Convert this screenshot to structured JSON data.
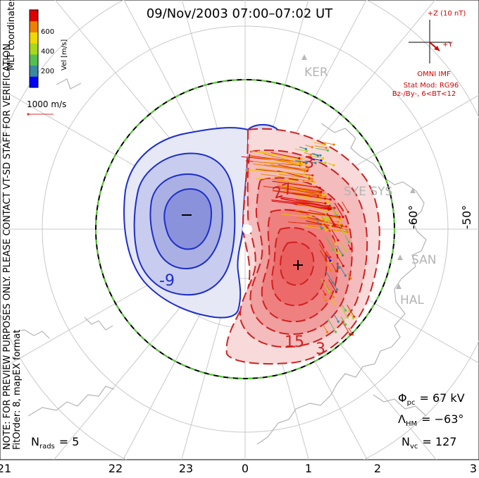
{
  "title": "09/Nov/2003 07:00–07:02 UT",
  "side_text": {
    "mlt_coordinates": "MLT coordinates",
    "note": "NOTE: FOR PREVIEW PURPOSES ONLY. PLEASE CONTACT VT-SD STAFF FOR VERIFICATION.",
    "fit_order": "FitOrder: 8, mapEX format"
  },
  "colorbar": {
    "label": "Vel [m/s]",
    "ticks": [
      "600",
      "400",
      "200"
    ],
    "colors": [
      "#0000ff",
      "#3a8aa0",
      "#55c050",
      "#a8d818",
      "#f0d800",
      "#f08000",
      "#e00000"
    ]
  },
  "vector_scale": {
    "label": "1000 m/s",
    "color": "#d83030"
  },
  "imf": {
    "bz_label": "+Z (10 nT)",
    "by_label": "+Y",
    "source": "OMNI IMF",
    "model": "Stat Mod: RG96",
    "bin": "Bz-/By-, 6<BT<12",
    "color": "#d00000"
  },
  "stations": [
    {
      "name": "KER",
      "key": "ker"
    },
    {
      "name": "SYE SYS",
      "key": "sye"
    },
    {
      "name": "SAN",
      "key": "san"
    },
    {
      "name": "HAL",
      "key": "hal"
    }
  ],
  "lat_labels": [
    "-60°",
    "-50°"
  ],
  "contour_labels": {
    "neg": "-9",
    "pos1": "15",
    "pos2": "3",
    "pos3": "3",
    "pos4": "27"
  },
  "stats": {
    "phi_symbol": "Φ",
    "phi_sub": "pc",
    "phi_value": "= 67 kV",
    "lambda_symbol": "Λ",
    "lambda_sub": "HM",
    "lambda_value": "= −63°",
    "nvc_symbol": "N",
    "nvc_sub": "vc",
    "nvc_value": "= 127",
    "nrads_symbol": "N",
    "nrads_sub": "rads",
    "nrads_value": "= 5"
  },
  "chart_data": {
    "type": "polar_convection_map",
    "x_ticks": [
      "21",
      "22",
      "23",
      "0",
      "1",
      "2",
      "3"
    ],
    "x_unit": "MLT",
    "latitude_ticks": [
      "-60°",
      "-50°"
    ],
    "cross_polar_cap_potential_kV": 67,
    "heppner_maynard_boundary_deg": -63,
    "n_vectors": 127,
    "n_radars": 5,
    "contour_labels": [
      "-9",
      "3",
      "3",
      "15",
      "27"
    ],
    "colorbar_range_ms": [
      0,
      700
    ],
    "colors": {
      "negative_cell": "#1d2ec8",
      "positive_cell": "#e02020",
      "boundary": "#55cc33"
    }
  }
}
